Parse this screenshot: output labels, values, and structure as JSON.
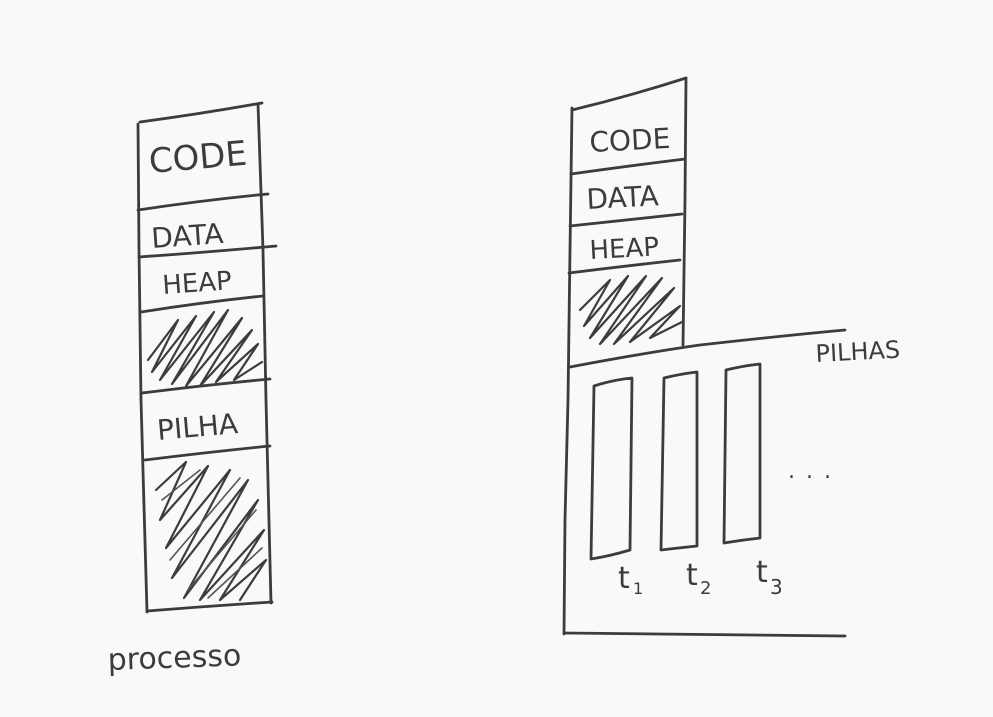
{
  "left": {
    "segments": [
      "CODE",
      "DATA",
      "HEAP",
      "PILHA"
    ],
    "caption": "processo"
  },
  "right": {
    "segments": [
      "CODE",
      "DATA",
      "HEAP"
    ],
    "stacks_label": "PILHAS",
    "threads": [
      {
        "base": "t",
        "sub": "1"
      },
      {
        "base": "t",
        "sub": "2"
      },
      {
        "base": "t",
        "sub": "3"
      }
    ],
    "ellipsis": ". . ."
  },
  "colors": {
    "ink": "#3c3c3c",
    "background": "#f9f9f8"
  }
}
